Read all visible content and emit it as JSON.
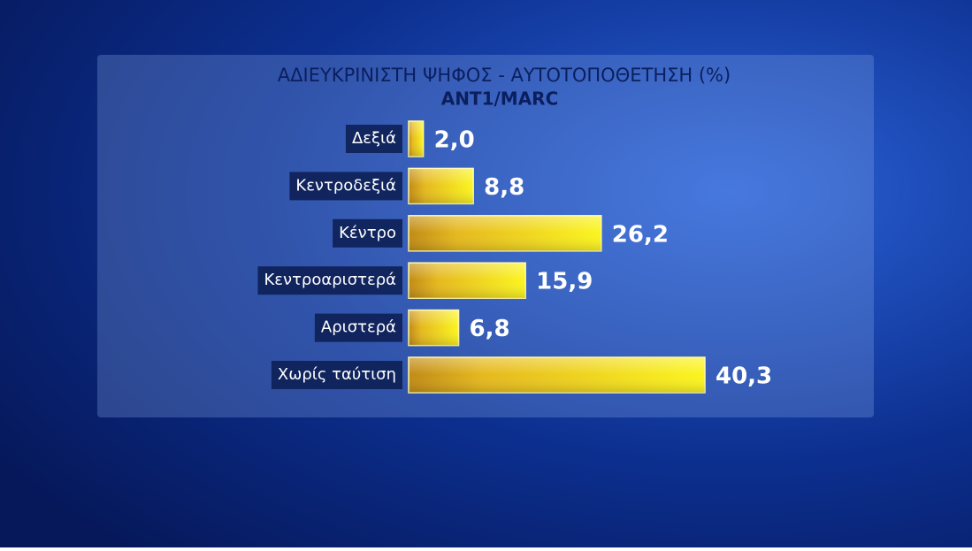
{
  "chart_data": {
    "type": "bar",
    "orientation": "horizontal",
    "title": "ΑΔΙΕΥΚΡΙΝΙΣΤΗ ΨΗΦΟΣ - ΑΥΤΟΤΟΠΟΘΕΤΗΣΗ (%)",
    "subtitle": "ANT1/MARC",
    "categories": [
      "Δεξιά",
      "Κεντροδεξιά",
      "Κέντρο",
      "Κεντροαριστερά",
      "Αριστερά",
      "Χωρίς ταύτιση"
    ],
    "values": [
      2.0,
      8.8,
      26.2,
      15.9,
      6.8,
      40.3
    ],
    "value_labels": [
      "2,0",
      "8,8",
      "26,2",
      "15,9",
      "6,8",
      "40,3"
    ],
    "color": "#f2e21a"
  }
}
